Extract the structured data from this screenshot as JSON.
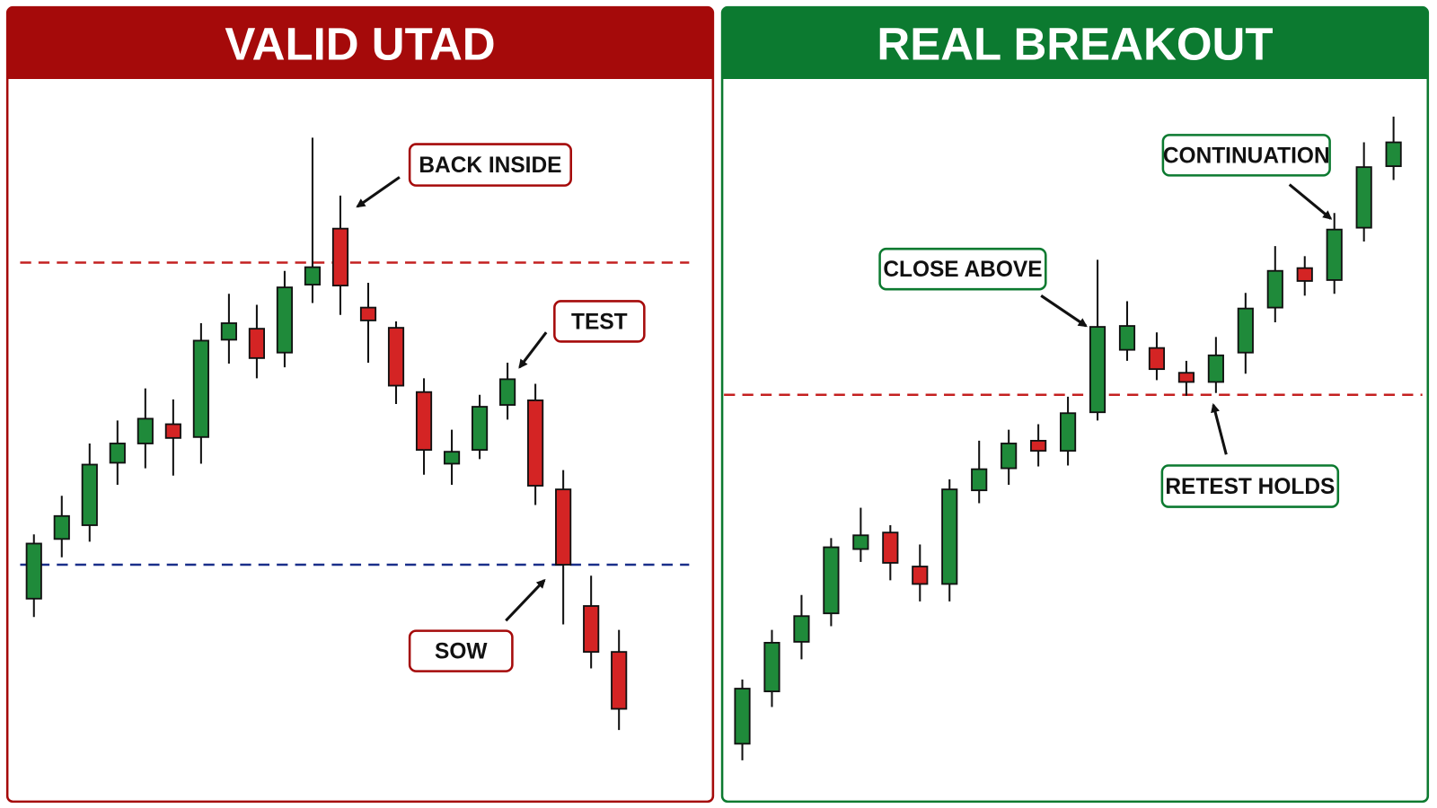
{
  "chart_data": [
    {
      "type": "candlestick",
      "title": "VALID UTAD",
      "frame_color": "#a50a0a",
      "up_color": "#1f8a3a",
      "down_color": "#d42424",
      "ylim": [
        0,
        792
      ],
      "open": [
        228,
        293,
        308,
        376,
        397,
        418,
        404,
        510,
        522,
        496,
        570,
        631,
        545,
        523,
        453,
        375,
        390,
        439,
        444,
        347,
        220,
        170
      ],
      "high": [
        298,
        340,
        397,
        422,
        457,
        445,
        528,
        560,
        548,
        585,
        730,
        667,
        572,
        530,
        468,
        412,
        450,
        485,
        462,
        368,
        253,
        194
      ],
      "low": [
        208,
        273,
        290,
        352,
        370,
        362,
        375,
        484,
        468,
        480,
        550,
        537,
        485,
        440,
        363,
        352,
        380,
        423,
        330,
        200,
        152,
        85
      ],
      "close": [
        288,
        318,
        374,
        397,
        424,
        403,
        509,
        528,
        490,
        567,
        589,
        569,
        531,
        460,
        390,
        388,
        437,
        467,
        351,
        265,
        170,
        108
      ],
      "levels": [
        {
          "value": 594,
          "color": "#c42020"
        },
        {
          "value": 265,
          "color": "#1a2f8a"
        }
      ],
      "annotations": [
        {
          "text": "BACK INSIDE"
        },
        {
          "text": "TEST"
        },
        {
          "text": "SOW"
        }
      ]
    },
    {
      "type": "candlestick",
      "title": "REAL BREAKOUT",
      "frame_color": "#0c7a30",
      "up_color": "#1f8a3a",
      "down_color": "#d42424",
      "ylim": [
        0,
        792
      ],
      "open": [
        70,
        127,
        181,
        212,
        282,
        300,
        263,
        244,
        346,
        370,
        400,
        389,
        431,
        499,
        501,
        474,
        464,
        496,
        545,
        588,
        575,
        632,
        699
      ],
      "high": [
        140,
        194,
        232,
        294,
        327,
        308,
        287,
        358,
        400,
        412,
        418,
        448,
        597,
        552,
        518,
        487,
        513,
        561,
        612,
        601,
        648,
        725,
        753
      ],
      "low": [
        52,
        110,
        162,
        198,
        268,
        248,
        225,
        225,
        332,
        352,
        372,
        373,
        422,
        487,
        466,
        449,
        452,
        473,
        529,
        558,
        560,
        617,
        684
      ],
      "close": [
        130,
        180,
        209,
        284,
        297,
        267,
        244,
        347,
        369,
        397,
        389,
        430,
        524,
        525,
        478,
        464,
        493,
        544,
        585,
        574,
        630,
        698,
        725
      ],
      "levels": [
        {
          "value": 450,
          "color": "#c42020"
        }
      ],
      "annotations": [
        {
          "text": "CONTINUATION"
        },
        {
          "text": "CLOSE ABOVE"
        },
        {
          "text": "RETEST HOLDS"
        }
      ]
    }
  ]
}
